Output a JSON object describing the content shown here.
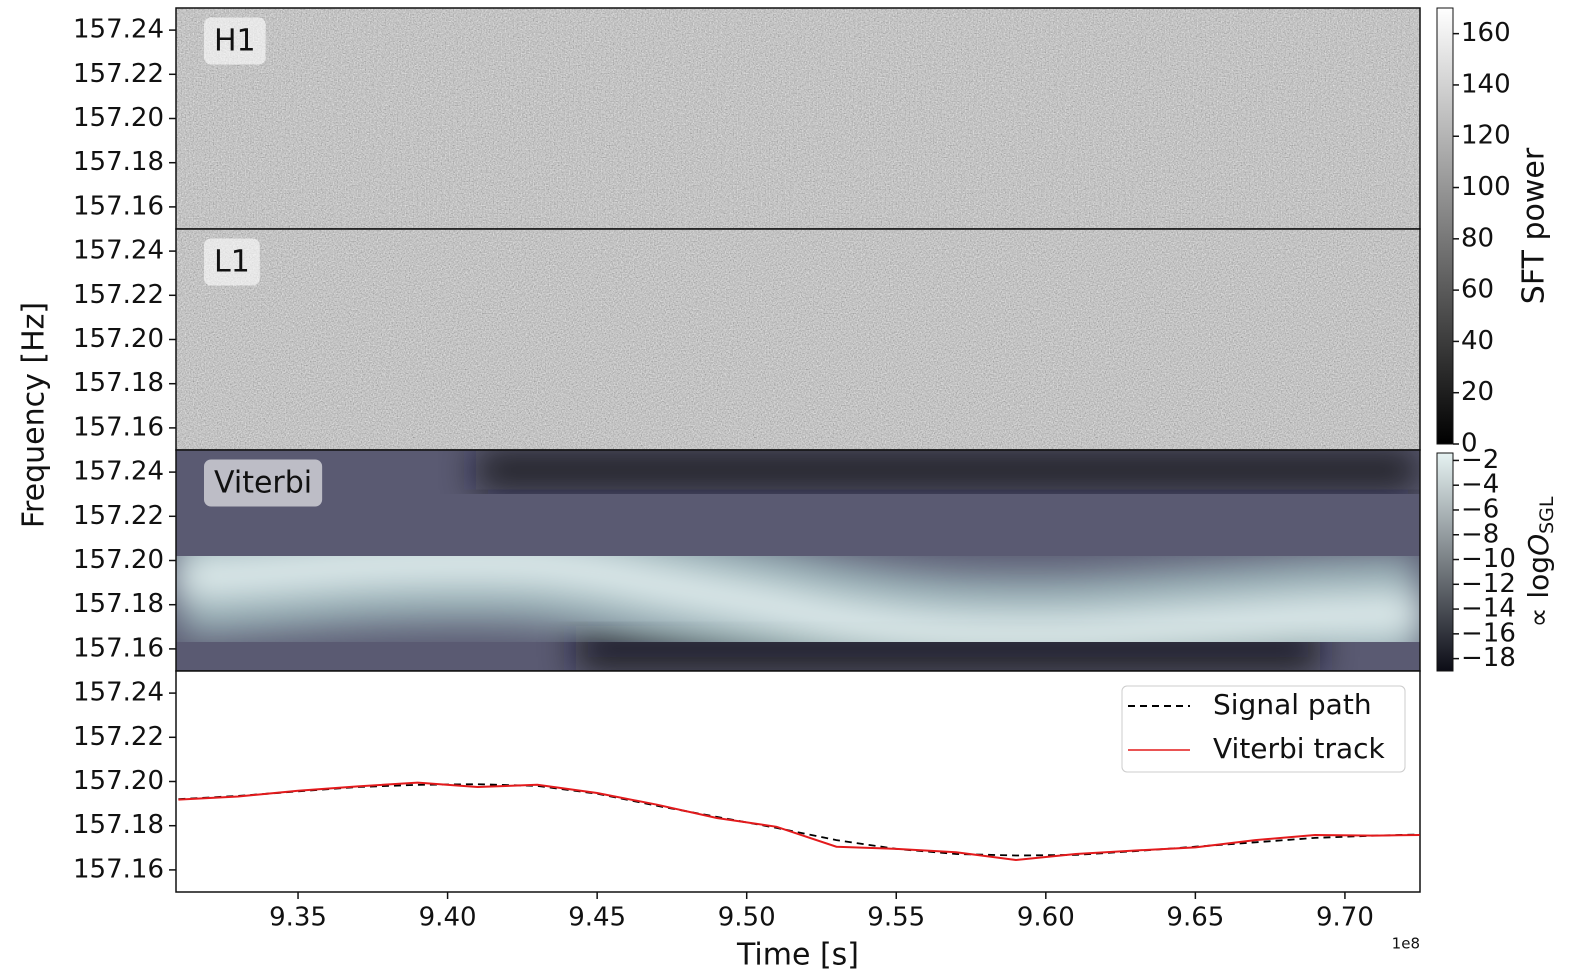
{
  "chart_data": [
    {
      "type": "heatmap",
      "label": "H1",
      "label_color": "#e41a1c",
      "ylim": [
        157.15,
        157.25
      ],
      "yticks": [
        157.16,
        157.18,
        {
          "value": 157.2,
          "label": "157.20"
        },
        157.22,
        157.24
      ],
      "cmap": [
        "#000000",
        "#ffffff"
      ],
      "colorbar": {
        "label": "SFT power",
        "lim": [
          0,
          170
        ],
        "ticks": [
          0,
          20,
          40,
          60,
          80,
          100,
          120,
          140,
          160
        ]
      }
    },
    {
      "type": "heatmap",
      "label": "L1",
      "label_color": "#1a8a1a",
      "ylim": [
        157.15,
        157.25
      ],
      "yticks": [
        157.16,
        157.18,
        {
          "value": 157.2,
          "label": "157.20"
        },
        157.22,
        157.24
      ],
      "cmap": [
        "#000000",
        "#ffffff"
      ]
    },
    {
      "type": "heatmap",
      "label": "Viterbi",
      "label_color": "#111111",
      "ylim": [
        157.15,
        157.25
      ],
      "yticks": [
        157.16,
        157.18,
        {
          "value": 157.2,
          "label": "157.20"
        },
        157.22,
        157.24
      ],
      "cmap": [
        "#0c0c16",
        "#e6f2f2"
      ],
      "colorbar": {
        "label_prefix": "∝ log",
        "label_symbol": "O",
        "label_subscript": "SGL",
        "lim": [
          -19,
          -1.4
        ],
        "ticks": [
          {
            "value": -2,
            "label": "−2"
          },
          {
            "value": -4,
            "label": "−4"
          },
          {
            "value": -6,
            "label": "−6"
          },
          {
            "value": -8,
            "label": "−8"
          },
          {
            "value": -10,
            "label": "−10"
          },
          {
            "value": -12,
            "label": "−12"
          },
          {
            "value": -14,
            "label": "−14"
          },
          {
            "value": -16,
            "label": "−16"
          },
          {
            "value": -18,
            "label": "−18"
          }
        ]
      }
    },
    {
      "type": "line",
      "xlabel": "Time [s]",
      "ylabel": "Frequency [Hz]",
      "x_offset_label": "1e8",
      "xlim": [
        9.3092,
        9.7251
      ],
      "ylim": [
        157.15,
        157.25
      ],
      "xticks": [
        9.35,
        {
          "value": 9.4,
          "label": "9.40"
        },
        9.45,
        {
          "value": 9.5,
          "label": "9.50"
        },
        9.55,
        {
          "value": 9.6,
          "label": "9.60"
        },
        9.65,
        {
          "value": 9.7,
          "label": "9.70"
        }
      ],
      "yticks": [
        157.16,
        157.18,
        {
          "value": 157.2,
          "label": "157.20"
        },
        157.22,
        157.24
      ],
      "legend": "upper right",
      "x": [
        9.31,
        9.33,
        9.35,
        9.37,
        9.39,
        9.41,
        9.43,
        9.45,
        9.47,
        9.49,
        9.51,
        9.53,
        9.55,
        9.57,
        9.59,
        9.61,
        9.63,
        9.65,
        9.67,
        9.69,
        9.71,
        9.725
      ],
      "series": [
        {
          "name": "Signal path",
          "color": "#000000",
          "dashed": true,
          "values": [
            157.192,
            157.1935,
            157.1955,
            157.1975,
            157.1985,
            157.1988,
            157.198,
            157.1945,
            157.189,
            157.184,
            157.179,
            157.1735,
            157.1695,
            157.1672,
            157.1665,
            157.1668,
            157.1685,
            157.1705,
            157.1725,
            157.1745,
            157.1755,
            157.176
          ]
        },
        {
          "name": "Viterbi track",
          "color": "#e31a1c",
          "dashed": false,
          "values": [
            157.1918,
            157.1932,
            157.1958,
            157.1978,
            157.1995,
            157.1975,
            157.1985,
            157.1948,
            157.1895,
            157.1835,
            157.1795,
            157.1705,
            157.1695,
            157.168,
            157.1645,
            157.1672,
            157.1688,
            157.1702,
            157.1735,
            157.1758,
            157.1755,
            157.1758
          ]
        }
      ]
    }
  ]
}
